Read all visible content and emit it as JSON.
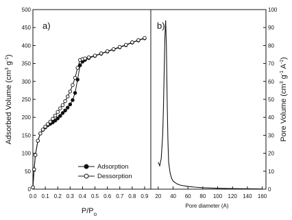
{
  "figure": {
    "panel_a_label": "a)",
    "panel_b_label": "b)"
  },
  "chart_data": [
    {
      "type": "line",
      "panel": "a)",
      "xlabel": "P/P",
      "xlabel_sub": "o",
      "ylabel": "Adsorbed Volume (cm",
      "ylabel_sup1": "3",
      "ylabel_mid": " g",
      "ylabel_sup2": "-1",
      "ylabel_end": ")",
      "xlim": [
        0.0,
        0.95
      ],
      "ylim": [
        0,
        500
      ],
      "xticks": [
        "0.0",
        "0.1",
        "0.2",
        "0.3",
        "0.4",
        "0.5",
        "0.6",
        "0.7",
        "0.8",
        "0.9"
      ],
      "yticks": [
        "0",
        "50",
        "100",
        "150",
        "200",
        "250",
        "300",
        "350",
        "400",
        "450",
        "500"
      ],
      "legend_position": "lower-right",
      "series": [
        {
          "name": "Adsorption",
          "marker": "filled-circle",
          "color": "#111111",
          "x": [
            0.0,
            0.01,
            0.02,
            0.04,
            0.06,
            0.08,
            0.1,
            0.12,
            0.14,
            0.16,
            0.18,
            0.2,
            0.22,
            0.24,
            0.26,
            0.28,
            0.3,
            0.32,
            0.34,
            0.36,
            0.38,
            0.4,
            0.42,
            0.45,
            0.5,
            0.55,
            0.6,
            0.65,
            0.7,
            0.75,
            0.8,
            0.85,
            0.9
          ],
          "y": [
            5,
            55,
            95,
            135,
            155,
            165,
            172,
            178,
            182,
            186,
            191,
            197,
            204,
            212,
            219,
            227,
            236,
            248,
            268,
            305,
            345,
            355,
            360,
            365,
            371,
            377,
            383,
            389,
            395,
            401,
            408,
            414,
            420
          ]
        },
        {
          "name": "Dessorption",
          "marker": "open-circle",
          "color": "#111111",
          "x": [
            0.0,
            0.01,
            0.02,
            0.04,
            0.06,
            0.08,
            0.1,
            0.12,
            0.14,
            0.16,
            0.18,
            0.2,
            0.22,
            0.24,
            0.26,
            0.28,
            0.3,
            0.32,
            0.34,
            0.36,
            0.38,
            0.4,
            0.42,
            0.45,
            0.5,
            0.55,
            0.6,
            0.65,
            0.7,
            0.75,
            0.8,
            0.85,
            0.9
          ],
          "y": [
            5,
            55,
            95,
            135,
            155,
            166,
            174,
            181,
            188,
            196,
            205,
            215,
            225,
            234,
            245,
            258,
            272,
            290,
            310,
            338,
            360,
            362,
            364,
            367,
            372,
            378,
            384,
            390,
            396,
            402,
            409,
            415,
            421
          ]
        }
      ]
    },
    {
      "type": "line",
      "panel": "b)",
      "xlabel": "Pore diameter (A)",
      "ylabel": "Pore Volume (cm",
      "ylabel_sup1": "3",
      "ylabel_mid": " g",
      "ylabel_sup2": "-1",
      "ylabel_mid2": " A",
      "ylabel_sup3": "-1",
      "ylabel_end": ")",
      "xlim": [
        10,
        165
      ],
      "ylim": [
        0,
        100
      ],
      "xticks": [
        "20",
        "40",
        "60",
        "80",
        "100",
        "120",
        "140",
        "160"
      ],
      "yticks": [
        "0",
        "10",
        "20",
        "30",
        "40",
        "50",
        "60",
        "70",
        "80",
        "90",
        "100"
      ],
      "series": [
        {
          "color": "#111111",
          "x": [
            20,
            22,
            24,
            26,
            27,
            28,
            29,
            30,
            31,
            32,
            33,
            34,
            36,
            38,
            40,
            45,
            50,
            60,
            70,
            80,
            100,
            120,
            140,
            160
          ],
          "y": [
            15,
            13,
            17,
            30,
            45,
            65,
            85,
            94,
            80,
            50,
            28,
            15,
            9,
            6,
            4.5,
            3,
            2.2,
            1.5,
            1.1,
            0.8,
            0.5,
            0.3,
            0.2,
            0.1
          ]
        }
      ]
    }
  ]
}
